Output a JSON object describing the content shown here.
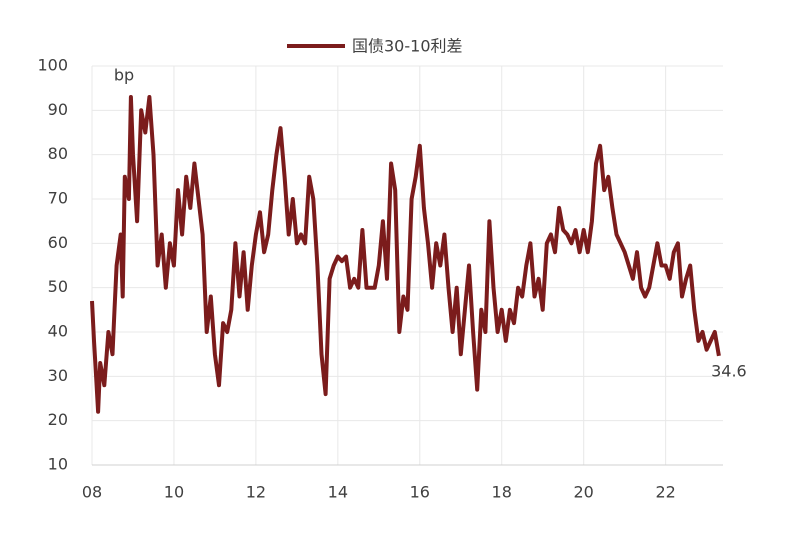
{
  "chart_data": {
    "type": "line",
    "ylabel": "bp",
    "x": [
      8.0,
      8.05,
      8.1,
      8.15,
      8.2,
      8.3,
      8.4,
      8.5,
      8.55,
      8.6,
      8.7,
      8.75,
      8.8,
      8.9,
      8.95,
      9.0,
      9.1,
      9.2,
      9.3,
      9.4,
      9.5,
      9.6,
      9.7,
      9.8,
      9.9,
      10.0,
      10.1,
      10.2,
      10.3,
      10.4,
      10.5,
      10.6,
      10.7,
      10.8,
      10.9,
      11.0,
      11.1,
      11.2,
      11.3,
      11.4,
      11.5,
      11.6,
      11.7,
      11.8,
      11.9,
      12.0,
      12.1,
      12.2,
      12.3,
      12.4,
      12.5,
      12.6,
      12.7,
      12.8,
      12.9,
      13.0,
      13.1,
      13.2,
      13.3,
      13.4,
      13.5,
      13.6,
      13.7,
      13.8,
      13.9,
      14.0,
      14.1,
      14.2,
      14.3,
      14.4,
      14.5,
      14.6,
      14.7,
      14.8,
      14.9,
      15.0,
      15.1,
      15.2,
      15.3,
      15.4,
      15.5,
      15.6,
      15.7,
      15.8,
      15.9,
      16.0,
      16.1,
      16.2,
      16.3,
      16.4,
      16.5,
      16.6,
      16.7,
      16.8,
      16.9,
      17.0,
      17.1,
      17.2,
      17.3,
      17.4,
      17.5,
      17.6,
      17.7,
      17.8,
      17.9,
      18.0,
      18.1,
      18.2,
      18.3,
      18.4,
      18.5,
      18.6,
      18.7,
      18.8,
      18.9,
      19.0,
      19.1,
      19.2,
      19.3,
      19.4,
      19.5,
      19.6,
      19.7,
      19.8,
      19.9,
      20.0,
      20.1,
      20.2,
      20.3,
      20.4,
      20.5,
      20.6,
      20.7,
      20.8,
      20.9,
      21.0,
      21.1,
      21.2,
      21.3,
      21.4,
      21.5,
      21.6,
      21.7,
      21.8,
      21.9,
      22.0,
      22.1,
      22.2,
      22.3,
      22.4,
      22.5,
      22.6,
      22.7,
      22.8,
      22.9,
      23.0,
      23.1,
      23.2,
      23.3
    ],
    "series": [
      {
        "name": "国债30-10利差",
        "color": "#7b1c1c",
        "values": [
          47,
          38,
          30,
          22,
          33,
          28,
          40,
          35,
          45,
          55,
          62,
          48,
          75,
          70,
          93,
          80,
          65,
          90,
          85,
          93,
          80,
          55,
          62,
          50,
          60,
          55,
          72,
          62,
          75,
          68,
          78,
          70,
          62,
          40,
          48,
          35,
          28,
          42,
          40,
          45,
          60,
          48,
          58,
          45,
          55,
          62,
          67,
          58,
          62,
          72,
          80,
          86,
          75,
          62,
          70,
          60,
          62,
          60,
          75,
          70,
          55,
          35,
          26,
          52,
          55,
          57,
          56,
          57,
          50,
          52,
          50,
          63,
          50,
          50,
          50,
          55,
          65,
          52,
          78,
          72,
          40,
          48,
          45,
          70,
          75,
          82,
          68,
          60,
          50,
          60,
          55,
          62,
          50,
          40,
          50,
          35,
          45,
          55,
          40,
          27,
          45,
          40,
          65,
          50,
          40,
          45,
          38,
          45,
          42,
          50,
          48,
          55,
          60,
          48,
          52,
          45,
          60,
          62,
          58,
          68,
          63,
          62,
          60,
          63,
          58,
          63,
          58,
          65,
          78,
          82,
          72,
          75,
          68,
          62,
          60,
          58,
          55,
          52,
          58,
          50,
          48,
          50,
          55,
          60,
          55,
          55,
          52,
          58,
          60,
          48,
          52,
          55,
          45,
          38,
          40,
          36,
          38,
          40,
          34.6
        ]
      }
    ],
    "xlim": [
      8,
      23.4
    ],
    "xticks": [
      {
        "value": 8,
        "label": "08"
      },
      10,
      12,
      14,
      16,
      18,
      20,
      22
    ],
    "ylim": [
      10,
      100
    ],
    "yticks": [
      10,
      20,
      30,
      40,
      50,
      60,
      70,
      80,
      90,
      100
    ],
    "grid": true
  }
}
